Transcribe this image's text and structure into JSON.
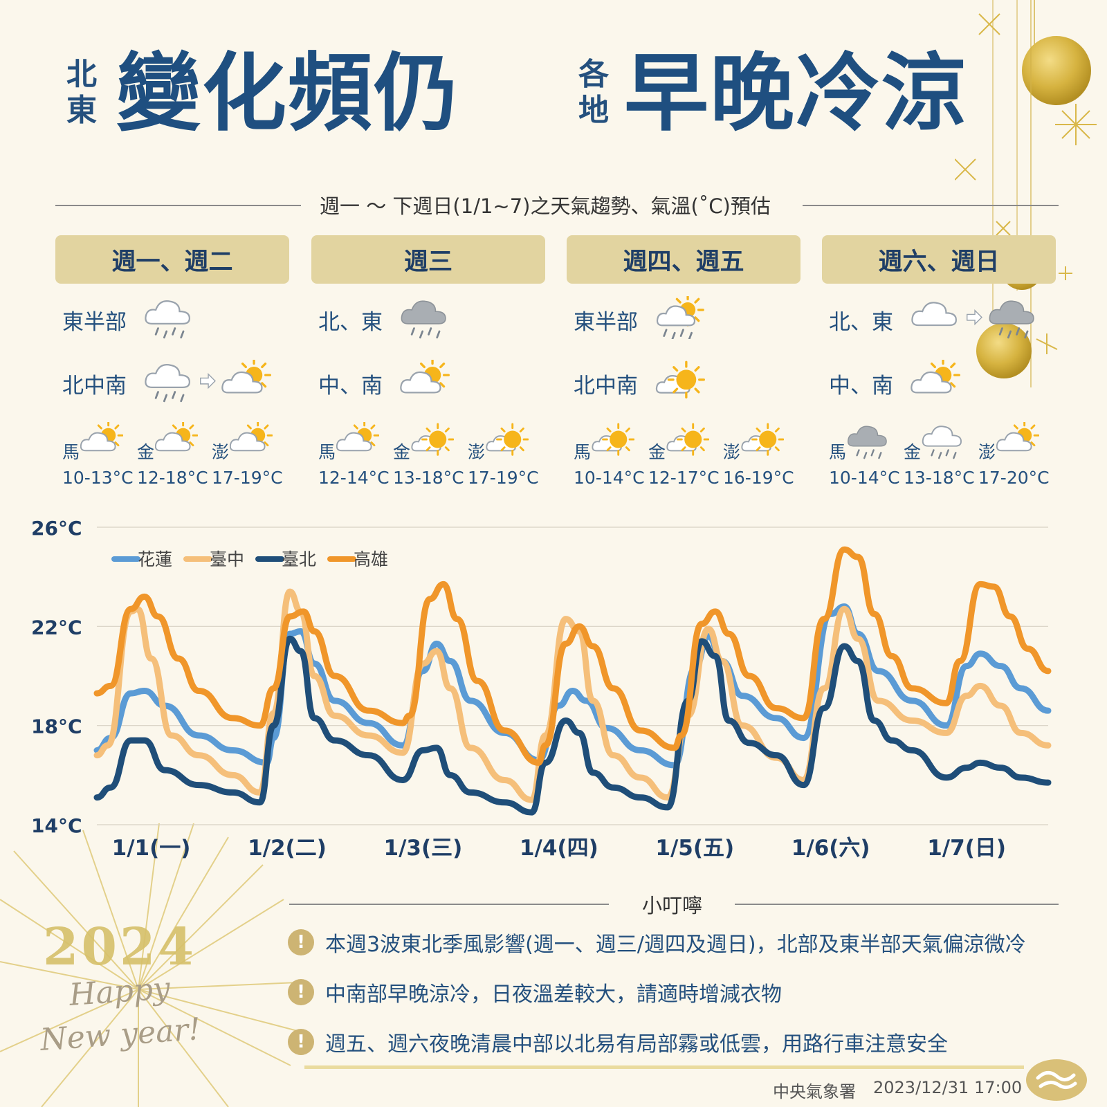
{
  "title": {
    "left_small": "北東",
    "left_big": "變化頻仍",
    "right_small": "各地",
    "right_big": "早晚冷涼"
  },
  "subtitle": "週一 ～ 下週日(1/1~7)之天氣趨勢、氣溫(˚C)預估",
  "days": [
    {
      "header": "週一、週二",
      "regions": [
        {
          "label": "東半部",
          "icons": [
            "cloud-rain-icon"
          ]
        },
        {
          "label": "北中南",
          "icons": [
            "cloud-rain-icon",
            "arrow-right-icon",
            "partly-sunny-icon"
          ]
        }
      ],
      "islands": [
        {
          "name": "馬",
          "icon": "partly-sunny-icon",
          "temp": "10-13°C"
        },
        {
          "name": "金",
          "icon": "partly-sunny-icon",
          "temp": "12-18°C"
        },
        {
          "name": "澎",
          "icon": "partly-sunny-icon",
          "temp": "17-19°C"
        }
      ]
    },
    {
      "header": "週三",
      "regions": [
        {
          "label": "北、東",
          "icons": [
            "dark-cloud-rain-icon"
          ]
        },
        {
          "label": "中、南",
          "icons": [
            "partly-sunny-icon"
          ]
        }
      ],
      "islands": [
        {
          "name": "馬",
          "icon": "partly-sunny-icon",
          "temp": "12-14°C"
        },
        {
          "name": "金",
          "icon": "mostly-sunny-icon",
          "temp": "13-18°C"
        },
        {
          "name": "澎",
          "icon": "mostly-sunny-icon",
          "temp": "17-19°C"
        }
      ]
    },
    {
      "header": "週四、週五",
      "regions": [
        {
          "label": "東半部",
          "icons": [
            "sun-cloud-rain-icon"
          ]
        },
        {
          "label": "北中南",
          "icons": [
            "mostly-sunny-icon"
          ]
        }
      ],
      "islands": [
        {
          "name": "馬",
          "icon": "mostly-sunny-icon",
          "temp": "10-14°C"
        },
        {
          "name": "金",
          "icon": "mostly-sunny-icon",
          "temp": "12-17°C"
        },
        {
          "name": "澎",
          "icon": "mostly-sunny-icon",
          "temp": "16-19°C"
        }
      ]
    },
    {
      "header": "週六、週日",
      "regions": [
        {
          "label": "北、東",
          "icons": [
            "cloud-icon",
            "arrow-right-icon",
            "dark-cloud-rain-icon"
          ]
        },
        {
          "label": "中、南",
          "icons": [
            "partly-sunny-icon"
          ]
        }
      ],
      "islands": [
        {
          "name": "馬",
          "icon": "dark-cloud-rain-icon",
          "temp": "10-14°C"
        },
        {
          "name": "金",
          "icon": "cloud-rain-icon",
          "temp": "13-18°C"
        },
        {
          "name": "澎",
          "icon": "partly-sunny-icon",
          "temp": "17-20°C"
        }
      ]
    }
  ],
  "chart_data": {
    "type": "line",
    "title": "",
    "xlabel": "",
    "ylabel": "",
    "ylim": [
      14,
      26
    ],
    "yticks": [
      "26°C",
      "22°C",
      "18°C",
      "14°C"
    ],
    "ytick_values": [
      26,
      22,
      18,
      14
    ],
    "grid": true,
    "legend_position": "top-left",
    "categories": [
      "1/1(一)",
      "1/2(二)",
      "1/3(三)",
      "1/4(四)",
      "1/5(五)",
      "1/6(六)",
      "1/7(日)"
    ],
    "x_range": [
      0,
      7
    ],
    "series": [
      {
        "name": "花蓮",
        "color": "#5b9bd5",
        "points": [
          [
            0,
            17.0
          ],
          [
            0.1,
            17.5
          ],
          [
            0.25,
            19.3
          ],
          [
            0.35,
            19.4
          ],
          [
            0.5,
            18.8
          ],
          [
            0.75,
            17.6
          ],
          [
            1.0,
            17.0
          ],
          [
            1.25,
            16.5
          ],
          [
            1.3,
            17.5
          ],
          [
            1.42,
            21.7
          ],
          [
            1.5,
            21.8
          ],
          [
            1.6,
            20.5
          ],
          [
            1.75,
            19.0
          ],
          [
            2.0,
            18.1
          ],
          [
            2.25,
            17.2
          ],
          [
            2.4,
            20.2
          ],
          [
            2.5,
            21.3
          ],
          [
            2.6,
            20.6
          ],
          [
            2.75,
            19.0
          ],
          [
            3.0,
            17.7
          ],
          [
            3.25,
            16.6
          ],
          [
            3.4,
            18.8
          ],
          [
            3.5,
            19.4
          ],
          [
            3.6,
            19.0
          ],
          [
            3.75,
            17.9
          ],
          [
            4.0,
            17.0
          ],
          [
            4.25,
            16.4
          ],
          [
            4.4,
            20.3
          ],
          [
            4.5,
            21.6
          ],
          [
            4.6,
            20.6
          ],
          [
            4.75,
            19.2
          ],
          [
            5.0,
            18.3
          ],
          [
            5.2,
            17.5
          ],
          [
            5.4,
            22.5
          ],
          [
            5.5,
            22.8
          ],
          [
            5.6,
            21.7
          ],
          [
            5.75,
            20.2
          ],
          [
            6.0,
            19.0
          ],
          [
            6.25,
            18.0
          ],
          [
            6.4,
            20.4
          ],
          [
            6.5,
            20.9
          ],
          [
            6.65,
            20.4
          ],
          [
            6.8,
            19.5
          ],
          [
            7.0,
            18.6
          ]
        ]
      },
      {
        "name": "臺中",
        "color": "#f5bf7a",
        "points": [
          [
            0,
            16.8
          ],
          [
            0.08,
            17.2
          ],
          [
            0.25,
            22.6
          ],
          [
            0.3,
            22.7
          ],
          [
            0.4,
            20.7
          ],
          [
            0.55,
            17.6
          ],
          [
            0.75,
            16.8
          ],
          [
            1.0,
            16.0
          ],
          [
            1.2,
            15.3
          ],
          [
            1.3,
            18.5
          ],
          [
            1.42,
            23.4
          ],
          [
            1.5,
            22.6
          ],
          [
            1.6,
            20.0
          ],
          [
            1.75,
            18.4
          ],
          [
            2.0,
            17.6
          ],
          [
            2.25,
            16.9
          ],
          [
            2.4,
            20.5
          ],
          [
            2.5,
            21.0
          ],
          [
            2.6,
            19.5
          ],
          [
            2.75,
            17.1
          ],
          [
            3.0,
            15.8
          ],
          [
            3.2,
            15.0
          ],
          [
            3.3,
            17.6
          ],
          [
            3.45,
            22.3
          ],
          [
            3.55,
            21.8
          ],
          [
            3.65,
            19.0
          ],
          [
            3.8,
            16.8
          ],
          [
            4.0,
            15.9
          ],
          [
            4.2,
            15.1
          ],
          [
            4.35,
            18.4
          ],
          [
            4.5,
            21.9
          ],
          [
            4.6,
            20.6
          ],
          [
            4.75,
            18.0
          ],
          [
            5.0,
            16.7
          ],
          [
            5.2,
            15.8
          ],
          [
            5.35,
            19.5
          ],
          [
            5.5,
            22.7
          ],
          [
            5.6,
            21.5
          ],
          [
            5.75,
            19.0
          ],
          [
            6.0,
            18.2
          ],
          [
            6.25,
            17.7
          ],
          [
            6.4,
            19.2
          ],
          [
            6.5,
            19.6
          ],
          [
            6.65,
            18.8
          ],
          [
            6.8,
            17.7
          ],
          [
            7.0,
            17.2
          ]
        ]
      },
      {
        "name": "臺北",
        "color": "#1f4e79",
        "points": [
          [
            0,
            15.1
          ],
          [
            0.1,
            15.5
          ],
          [
            0.25,
            17.4
          ],
          [
            0.35,
            17.4
          ],
          [
            0.5,
            16.2
          ],
          [
            0.75,
            15.6
          ],
          [
            1.0,
            15.3
          ],
          [
            1.2,
            14.9
          ],
          [
            1.3,
            18.0
          ],
          [
            1.42,
            21.5
          ],
          [
            1.5,
            21.0
          ],
          [
            1.6,
            18.3
          ],
          [
            1.75,
            17.4
          ],
          [
            2.0,
            16.8
          ],
          [
            2.25,
            15.8
          ],
          [
            2.4,
            17.0
          ],
          [
            2.5,
            17.1
          ],
          [
            2.6,
            16.0
          ],
          [
            2.75,
            15.3
          ],
          [
            3.0,
            14.9
          ],
          [
            3.2,
            14.5
          ],
          [
            3.3,
            16.5
          ],
          [
            3.45,
            18.2
          ],
          [
            3.55,
            17.7
          ],
          [
            3.65,
            16.1
          ],
          [
            3.8,
            15.5
          ],
          [
            4.0,
            15.1
          ],
          [
            4.2,
            14.7
          ],
          [
            4.35,
            19.0
          ],
          [
            4.45,
            21.4
          ],
          [
            4.55,
            20.8
          ],
          [
            4.65,
            18.2
          ],
          [
            4.8,
            17.3
          ],
          [
            5.0,
            16.8
          ],
          [
            5.2,
            15.6
          ],
          [
            5.35,
            18.7
          ],
          [
            5.5,
            21.2
          ],
          [
            5.6,
            20.6
          ],
          [
            5.72,
            18.2
          ],
          [
            5.85,
            17.4
          ],
          [
            6.0,
            17.0
          ],
          [
            6.25,
            15.9
          ],
          [
            6.4,
            16.3
          ],
          [
            6.5,
            16.5
          ],
          [
            6.65,
            16.3
          ],
          [
            6.8,
            15.9
          ],
          [
            7.0,
            15.7
          ]
        ]
      },
      {
        "name": "高雄",
        "color": "#f0962a",
        "points": [
          [
            0,
            19.3
          ],
          [
            0.1,
            19.6
          ],
          [
            0.25,
            22.7
          ],
          [
            0.35,
            23.2
          ],
          [
            0.45,
            22.4
          ],
          [
            0.6,
            20.7
          ],
          [
            0.75,
            19.4
          ],
          [
            1.0,
            18.3
          ],
          [
            1.2,
            18.0
          ],
          [
            1.3,
            19.5
          ],
          [
            1.42,
            22.4
          ],
          [
            1.52,
            22.6
          ],
          [
            1.6,
            21.8
          ],
          [
            1.75,
            20.0
          ],
          [
            2.0,
            18.6
          ],
          [
            2.25,
            18.1
          ],
          [
            2.3,
            18.4
          ],
          [
            2.45,
            23.1
          ],
          [
            2.55,
            23.7
          ],
          [
            2.65,
            22.3
          ],
          [
            2.8,
            19.8
          ],
          [
            3.0,
            17.8
          ],
          [
            3.25,
            16.5
          ],
          [
            3.3,
            17.2
          ],
          [
            3.45,
            21.3
          ],
          [
            3.55,
            22.0
          ],
          [
            3.65,
            21.2
          ],
          [
            3.8,
            19.5
          ],
          [
            4.0,
            17.8
          ],
          [
            4.25,
            17.1
          ],
          [
            4.3,
            17.6
          ],
          [
            4.45,
            22.1
          ],
          [
            4.55,
            22.6
          ],
          [
            4.65,
            21.7
          ],
          [
            4.8,
            20.0
          ],
          [
            5.0,
            18.7
          ],
          [
            5.2,
            18.3
          ],
          [
            5.35,
            22.3
          ],
          [
            5.5,
            25.1
          ],
          [
            5.6,
            24.8
          ],
          [
            5.72,
            22.5
          ],
          [
            5.85,
            20.8
          ],
          [
            6.0,
            19.5
          ],
          [
            6.25,
            18.9
          ],
          [
            6.35,
            20.6
          ],
          [
            6.5,
            23.7
          ],
          [
            6.6,
            23.6
          ],
          [
            6.72,
            22.4
          ],
          [
            6.85,
            21.1
          ],
          [
            7.0,
            20.2
          ]
        ]
      }
    ]
  },
  "tips": {
    "title": "小叮嚀",
    "icon": "exclamation-icon",
    "items": [
      "本週3波東北季風影響(週一、週三/週四及週日)，北部及東半部天氣偏涼微冷",
      "中南部早晚涼冷，日夜溫差較大，請適時增減衣物",
      "週五、週六夜晚清晨中部以北易有局部霧或低雲，用路行車注意安全"
    ]
  },
  "decoration": {
    "year": "2024",
    "greeting_1": "Happy",
    "greeting_2": "New year!"
  },
  "footer": {
    "agency": "中央氣象署",
    "timestamp": "2023/12/31 17:00",
    "logo_icon": "cwa-logo-icon"
  },
  "colors": {
    "title": "#1f4f80",
    "header_bg": "#e2d4a0",
    "gold": "#d9b84a"
  }
}
